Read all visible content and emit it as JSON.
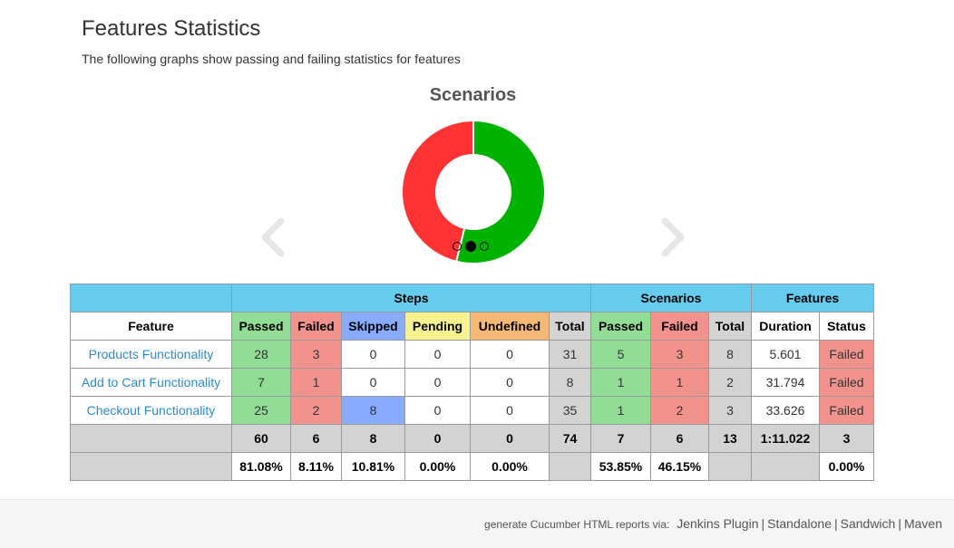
{
  "page": {
    "title": "Features Statistics",
    "subtitle": "The following graphs show passing and failing statistics for features"
  },
  "chart": {
    "title": "Scenarios",
    "slides": 3,
    "active_slide": 1
  },
  "chart_data": {
    "type": "pie",
    "title": "Scenarios",
    "categories": [
      "Passed",
      "Failed"
    ],
    "values": [
      7,
      6
    ],
    "colors": [
      "#00b300",
      "#ff3333"
    ]
  },
  "colors": {
    "passed": "#92dd96",
    "failed": "#f2928c",
    "skipped": "#88aaff",
    "pending": "#f5f28f",
    "undefined": "#f5b975",
    "total": "#d3d3d3",
    "group_header": "#66ccee",
    "link": "#2e8ac7"
  },
  "table": {
    "groups": {
      "steps": "Steps",
      "scenarios": "Scenarios",
      "features": "Features"
    },
    "columns": {
      "feature": "Feature",
      "steps_passed": "Passed",
      "steps_failed": "Failed",
      "steps_skipped": "Skipped",
      "steps_pending": "Pending",
      "steps_undefined": "Undefined",
      "steps_total": "Total",
      "scen_passed": "Passed",
      "scen_failed": "Failed",
      "scen_total": "Total",
      "duration": "Duration",
      "status": "Status"
    },
    "rows": [
      {
        "name": "Products Functionality",
        "passed": "28",
        "failed": "3",
        "skipped": "0",
        "pending": "0",
        "undefined": "0",
        "total": "31",
        "s_passed": "5",
        "s_failed": "3",
        "s_total": "8",
        "duration": "5.601",
        "status": "Failed"
      },
      {
        "name": "Add to Cart Functionality",
        "passed": "7",
        "failed": "1",
        "skipped": "0",
        "pending": "0",
        "undefined": "0",
        "total": "8",
        "s_passed": "1",
        "s_failed": "1",
        "s_total": "2",
        "duration": "31.794",
        "status": "Failed"
      },
      {
        "name": "Checkout Functionality",
        "passed": "25",
        "failed": "2",
        "skipped": "8",
        "pending": "0",
        "undefined": "0",
        "total": "35",
        "s_passed": "1",
        "s_failed": "2",
        "s_total": "3",
        "duration": "33.626",
        "status": "Failed"
      }
    ],
    "totals": {
      "passed": "60",
      "failed": "6",
      "skipped": "8",
      "pending": "0",
      "undefined": "0",
      "total": "74",
      "s_passed": "7",
      "s_failed": "6",
      "s_total": "13",
      "duration": "1:11.022",
      "status": "3"
    },
    "percentages": {
      "passed": "81.08%",
      "failed": "8.11%",
      "skipped": "10.81%",
      "pending": "0.00%",
      "undefined": "0.00%",
      "s_passed": "53.85%",
      "s_failed": "46.15%",
      "status": "0.00%"
    }
  },
  "footer": {
    "label": "generate Cucumber HTML reports via:",
    "links": [
      "Jenkins Plugin",
      "Standalone",
      "Sandwich",
      "Maven"
    ],
    "separator": "|"
  }
}
